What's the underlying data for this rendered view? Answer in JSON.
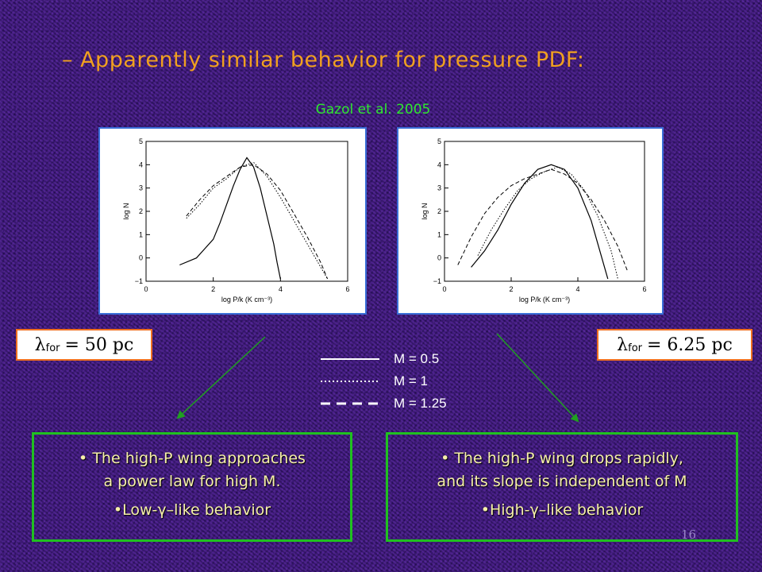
{
  "title": "– Apparently similar behavior for pressure PDF:",
  "citation": "Gazol et al. 2005",
  "lambda_left": {
    "symbol": "λ",
    "sub": "for",
    "value": "= 50 pc"
  },
  "lambda_right": {
    "symbol": "λ",
    "sub": "for",
    "value": "= 6.25 pc"
  },
  "legend": [
    {
      "label": "M = 0.5",
      "style": "solid"
    },
    {
      "label": "M = 1",
      "style": "dotted"
    },
    {
      "label": "M = 1.25",
      "style": "dashed"
    }
  ],
  "note_left": {
    "line1": "The high-P wing approaches",
    "line2": "a power law for high M.",
    "line3": "Low-γ–like behavior"
  },
  "note_right": {
    "line1": "The high-P wing drops rapidly,",
    "line2": "and its slope is independent of M",
    "line3": "High-γ–like behavior"
  },
  "page_number": "16",
  "colors": {
    "title": "#f0a020",
    "citation": "#2ee82e",
    "plot_border": "#3a6fd8",
    "lambda_border": "#f07020",
    "note_border": "#20c020",
    "note_text": "#f6f0a8",
    "arrow": "#20a020"
  },
  "chart_data": [
    {
      "type": "line",
      "xlabel": "log P/k (K cm⁻³)",
      "ylabel": "log N",
      "xlim": [
        0,
        6
      ],
      "ylim": [
        -1,
        5
      ],
      "xticks": [
        "0",
        "2",
        "4",
        "6"
      ],
      "yticks": [
        "−1",
        "0",
        "1",
        "2",
        "3",
        "4",
        "5"
      ],
      "series": [
        {
          "name": "M = 0.5",
          "style": "solid",
          "x": [
            1.0,
            1.5,
            2.0,
            2.2,
            2.4,
            2.6,
            2.8,
            3.0,
            3.2,
            3.4,
            3.6,
            3.8,
            3.9,
            4.0
          ],
          "y": [
            -0.3,
            0.0,
            0.8,
            1.5,
            2.3,
            3.1,
            3.8,
            4.3,
            3.9,
            3.0,
            1.8,
            0.6,
            -0.2,
            -0.9
          ]
        },
        {
          "name": "M = 1",
          "style": "dotted",
          "x": [
            1.2,
            1.6,
            2.0,
            2.4,
            2.8,
            3.2,
            3.6,
            4.0,
            4.4,
            4.8,
            5.2,
            5.4
          ],
          "y": [
            1.7,
            2.3,
            3.0,
            3.4,
            3.9,
            4.1,
            3.5,
            2.6,
            1.6,
            0.6,
            -0.4,
            -0.9
          ]
        },
        {
          "name": "M = 1.25",
          "style": "dashed",
          "x": [
            1.2,
            1.6,
            2.0,
            2.4,
            2.8,
            3.2,
            3.6,
            4.0,
            4.4,
            4.8,
            5.2,
            5.4
          ],
          "y": [
            1.8,
            2.5,
            3.1,
            3.5,
            3.9,
            4.0,
            3.6,
            2.9,
            1.9,
            0.9,
            -0.2,
            -0.9
          ]
        }
      ]
    },
    {
      "type": "line",
      "xlabel": "log P/k (K cm⁻³)",
      "ylabel": "log N",
      "xlim": [
        0,
        6
      ],
      "ylim": [
        -1,
        5
      ],
      "xticks": [
        "0",
        "2",
        "4",
        "6"
      ],
      "yticks": [
        "−1",
        "0",
        "1",
        "2",
        "3",
        "4",
        "5"
      ],
      "series": [
        {
          "name": "M = 0.5",
          "style": "solid",
          "x": [
            0.8,
            1.2,
            1.6,
            2.0,
            2.4,
            2.8,
            3.2,
            3.6,
            4.0,
            4.4,
            4.6,
            4.8,
            4.9
          ],
          "y": [
            -0.4,
            0.3,
            1.2,
            2.3,
            3.2,
            3.8,
            4.0,
            3.8,
            3.0,
            1.6,
            0.6,
            -0.4,
            -0.9
          ]
        },
        {
          "name": "M = 1",
          "style": "dotted",
          "x": [
            1.0,
            1.4,
            1.8,
            2.2,
            2.6,
            3.0,
            3.4,
            3.8,
            4.2,
            4.6,
            5.0,
            5.2
          ],
          "y": [
            0.1,
            1.2,
            2.1,
            2.9,
            3.4,
            3.7,
            3.9,
            3.6,
            2.9,
            1.8,
            0.3,
            -0.9
          ]
        },
        {
          "name": "M = 1.25",
          "style": "dashed",
          "x": [
            0.4,
            0.8,
            1.2,
            1.6,
            2.0,
            2.4,
            2.8,
            3.2,
            3.6,
            4.0,
            4.4,
            4.8,
            5.2,
            5.5
          ],
          "y": [
            -0.3,
            0.9,
            1.9,
            2.6,
            3.1,
            3.4,
            3.6,
            3.8,
            3.6,
            3.2,
            2.5,
            1.6,
            0.5,
            -0.6
          ]
        }
      ]
    }
  ]
}
